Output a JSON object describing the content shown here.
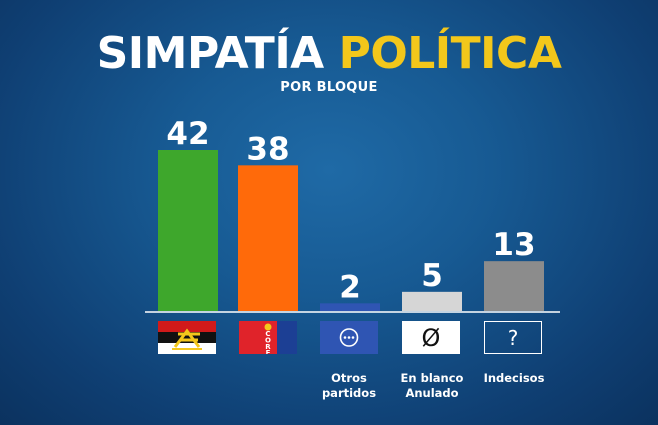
{
  "header": {
    "title_part1": "SIMPATÍA",
    "title_part2": "POLÍTICA",
    "subtitle": "POR BLOQUE"
  },
  "chart_data": {
    "type": "bar",
    "title": "SIMPATÍA POLÍTICA",
    "subtitle": "POR BLOQUE",
    "categories": [
      "",
      "",
      "Otros\npartidos",
      "En blanco\nAnulado",
      "Indecisos"
    ],
    "values": [
      42,
      38,
      2,
      5,
      13
    ],
    "value_labels": [
      "42",
      "38",
      "2",
      "5",
      "13"
    ],
    "colors": [
      "#3ea72c",
      "#ff6a0a",
      "#2f55b3",
      "#d6d6d6",
      "#8c8c8c"
    ],
    "ylim": [
      0,
      42
    ],
    "grid": false,
    "legend": "none"
  },
  "icons": [
    {
      "name": "party-flag-red-black-icon"
    },
    {
      "name": "core-party-logo-icon",
      "letters": [
        "C",
        "O",
        "R",
        "E"
      ]
    },
    {
      "name": "ellipsis-icon",
      "symbol": "···"
    },
    {
      "name": "empty-set-icon",
      "symbol": "Ø"
    },
    {
      "name": "question-mark-icon",
      "symbol": "?"
    }
  ]
}
